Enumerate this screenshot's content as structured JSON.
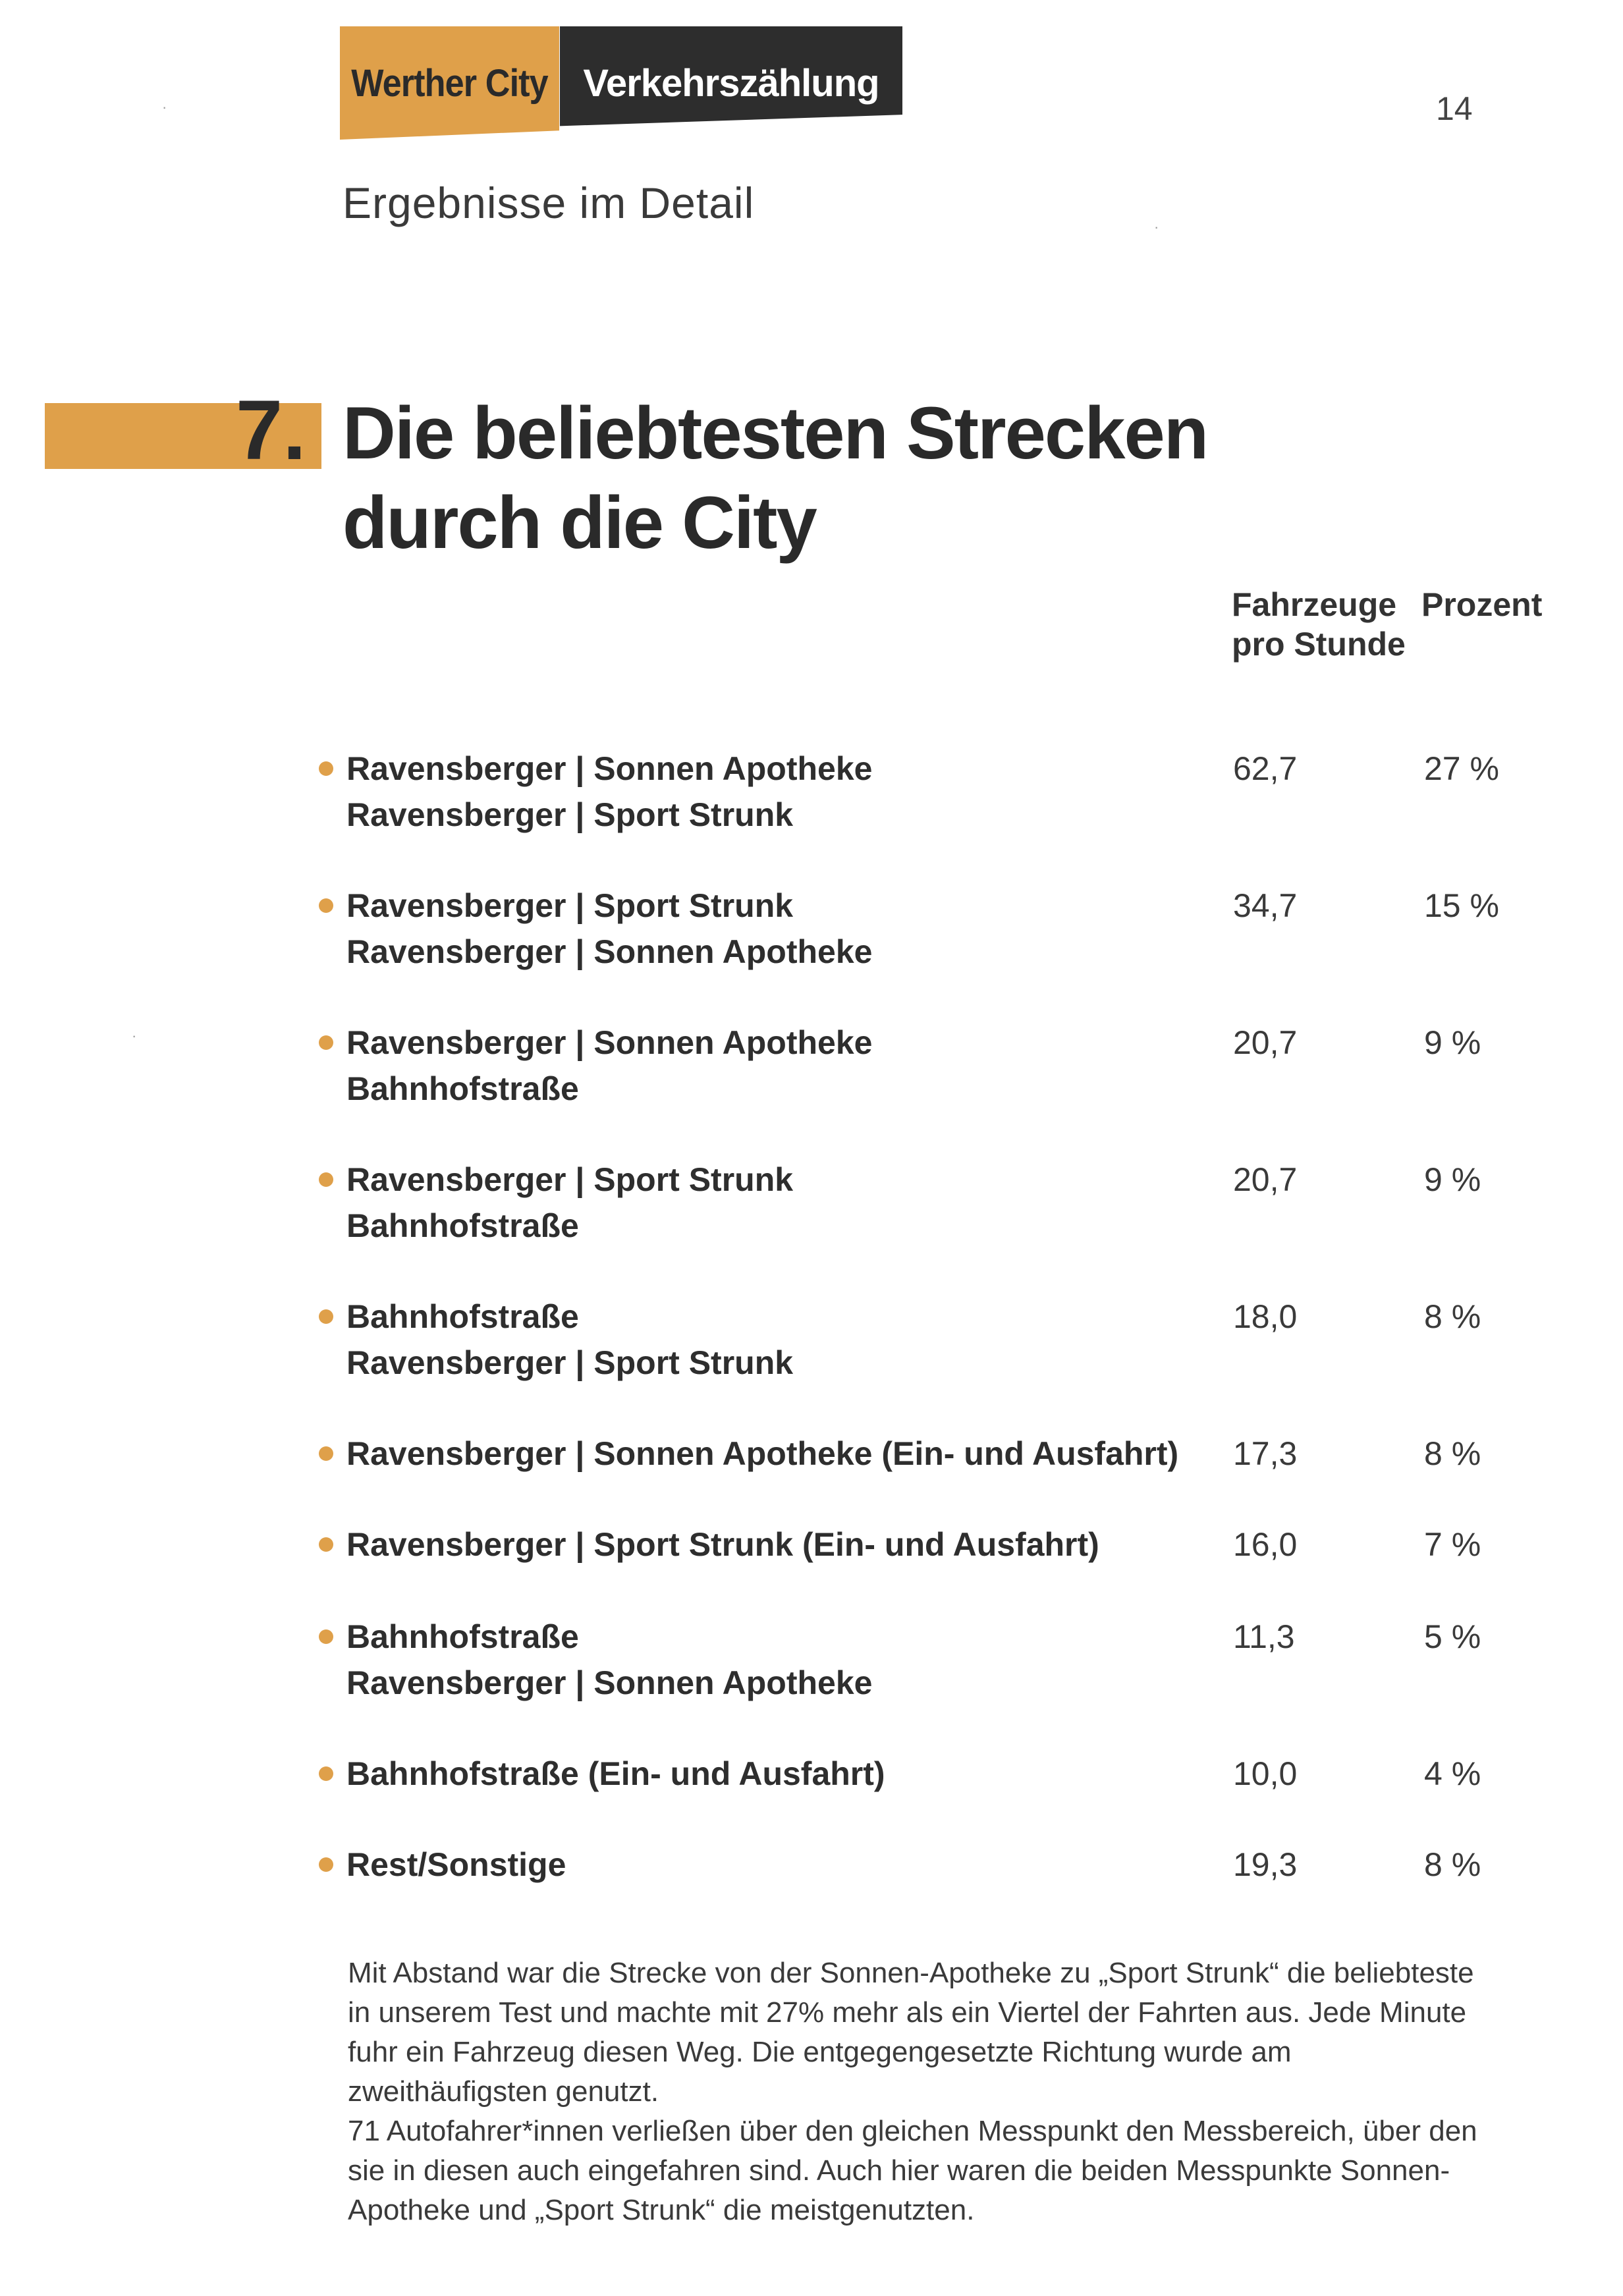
{
  "header": {
    "brand_left": "Werther City",
    "brand_right": "Verkehrszählung",
    "page_number": "14",
    "subtitle": "Ergebnisse im Detail"
  },
  "section": {
    "number": "7.",
    "title_line1": "Die beliebtesten Strecken",
    "title_line2": "durch die City"
  },
  "columns": {
    "vehicles_line1": "Fahrzeuge",
    "vehicles_line2": "pro Stunde",
    "percent": "Prozent"
  },
  "routes": [
    {
      "line1": "Ravensberger | Sonnen Apotheke",
      "line2": "Ravensberger | Sport Strunk",
      "value": "62,7",
      "percent": "27 %"
    },
    {
      "line1": "Ravensberger | Sport Strunk",
      "line2": "Ravensberger | Sonnen Apotheke",
      "value": "34,7",
      "percent": "15 %"
    },
    {
      "line1": "Ravensberger | Sonnen Apotheke",
      "line2": "Bahnhofstraße",
      "value": "20,7",
      "percent": "9 %"
    },
    {
      "line1": "Ravensberger | Sport Strunk",
      "line2": "Bahnhofstraße",
      "value": "20,7",
      "percent": "9 %"
    },
    {
      "line1": "Bahnhofstraße",
      "line2": "Ravensberger | Sport Strunk",
      "value": "18,0",
      "percent": "8 %"
    },
    {
      "line1": "Ravensberger | Sonnen Apotheke (Ein- und Ausfahrt)",
      "line2": "",
      "value": "17,3",
      "percent": "8 %"
    },
    {
      "line1": "Ravensberger | Sport Strunk (Ein- und Ausfahrt)",
      "line2": "",
      "value": "16,0",
      "percent": "7 %"
    },
    {
      "line1": "Bahnhofstraße",
      "line2": "Ravensberger | Sonnen Apotheke",
      "value": "11,3",
      "percent": "5 %"
    },
    {
      "line1": "Bahnhofstraße (Ein- und Ausfahrt)",
      "line2": "",
      "value": "10,0",
      "percent": "4 %"
    },
    {
      "line1": "Rest/Sonstige",
      "line2": "",
      "value": "19,3",
      "percent": "8 %"
    }
  ],
  "paragraphs": [
    "Mit Abstand war die Strecke von der Sonnen-Apotheke zu „Sport Strunk“ die beliebteste in unserem Test und machte mit 27% mehr als ein Viertel der Fahrten aus. Jede Minute fuhr ein Fahrzeug diesen Weg. Die entgegengesetzte Richtung wurde am zweithäufigsten genutzt.",
    "71 Autofahrer*innen verließen über den gleichen Messpunkt den Messbereich, über den sie in diesen auch eingefahren sind. Auch hier waren die beiden Messpunkte Sonnen-Apotheke und „Sport Strunk“ die meistgenutzten."
  ],
  "colors": {
    "accent": "#dfa04a",
    "dark": "#2d2d2d"
  }
}
